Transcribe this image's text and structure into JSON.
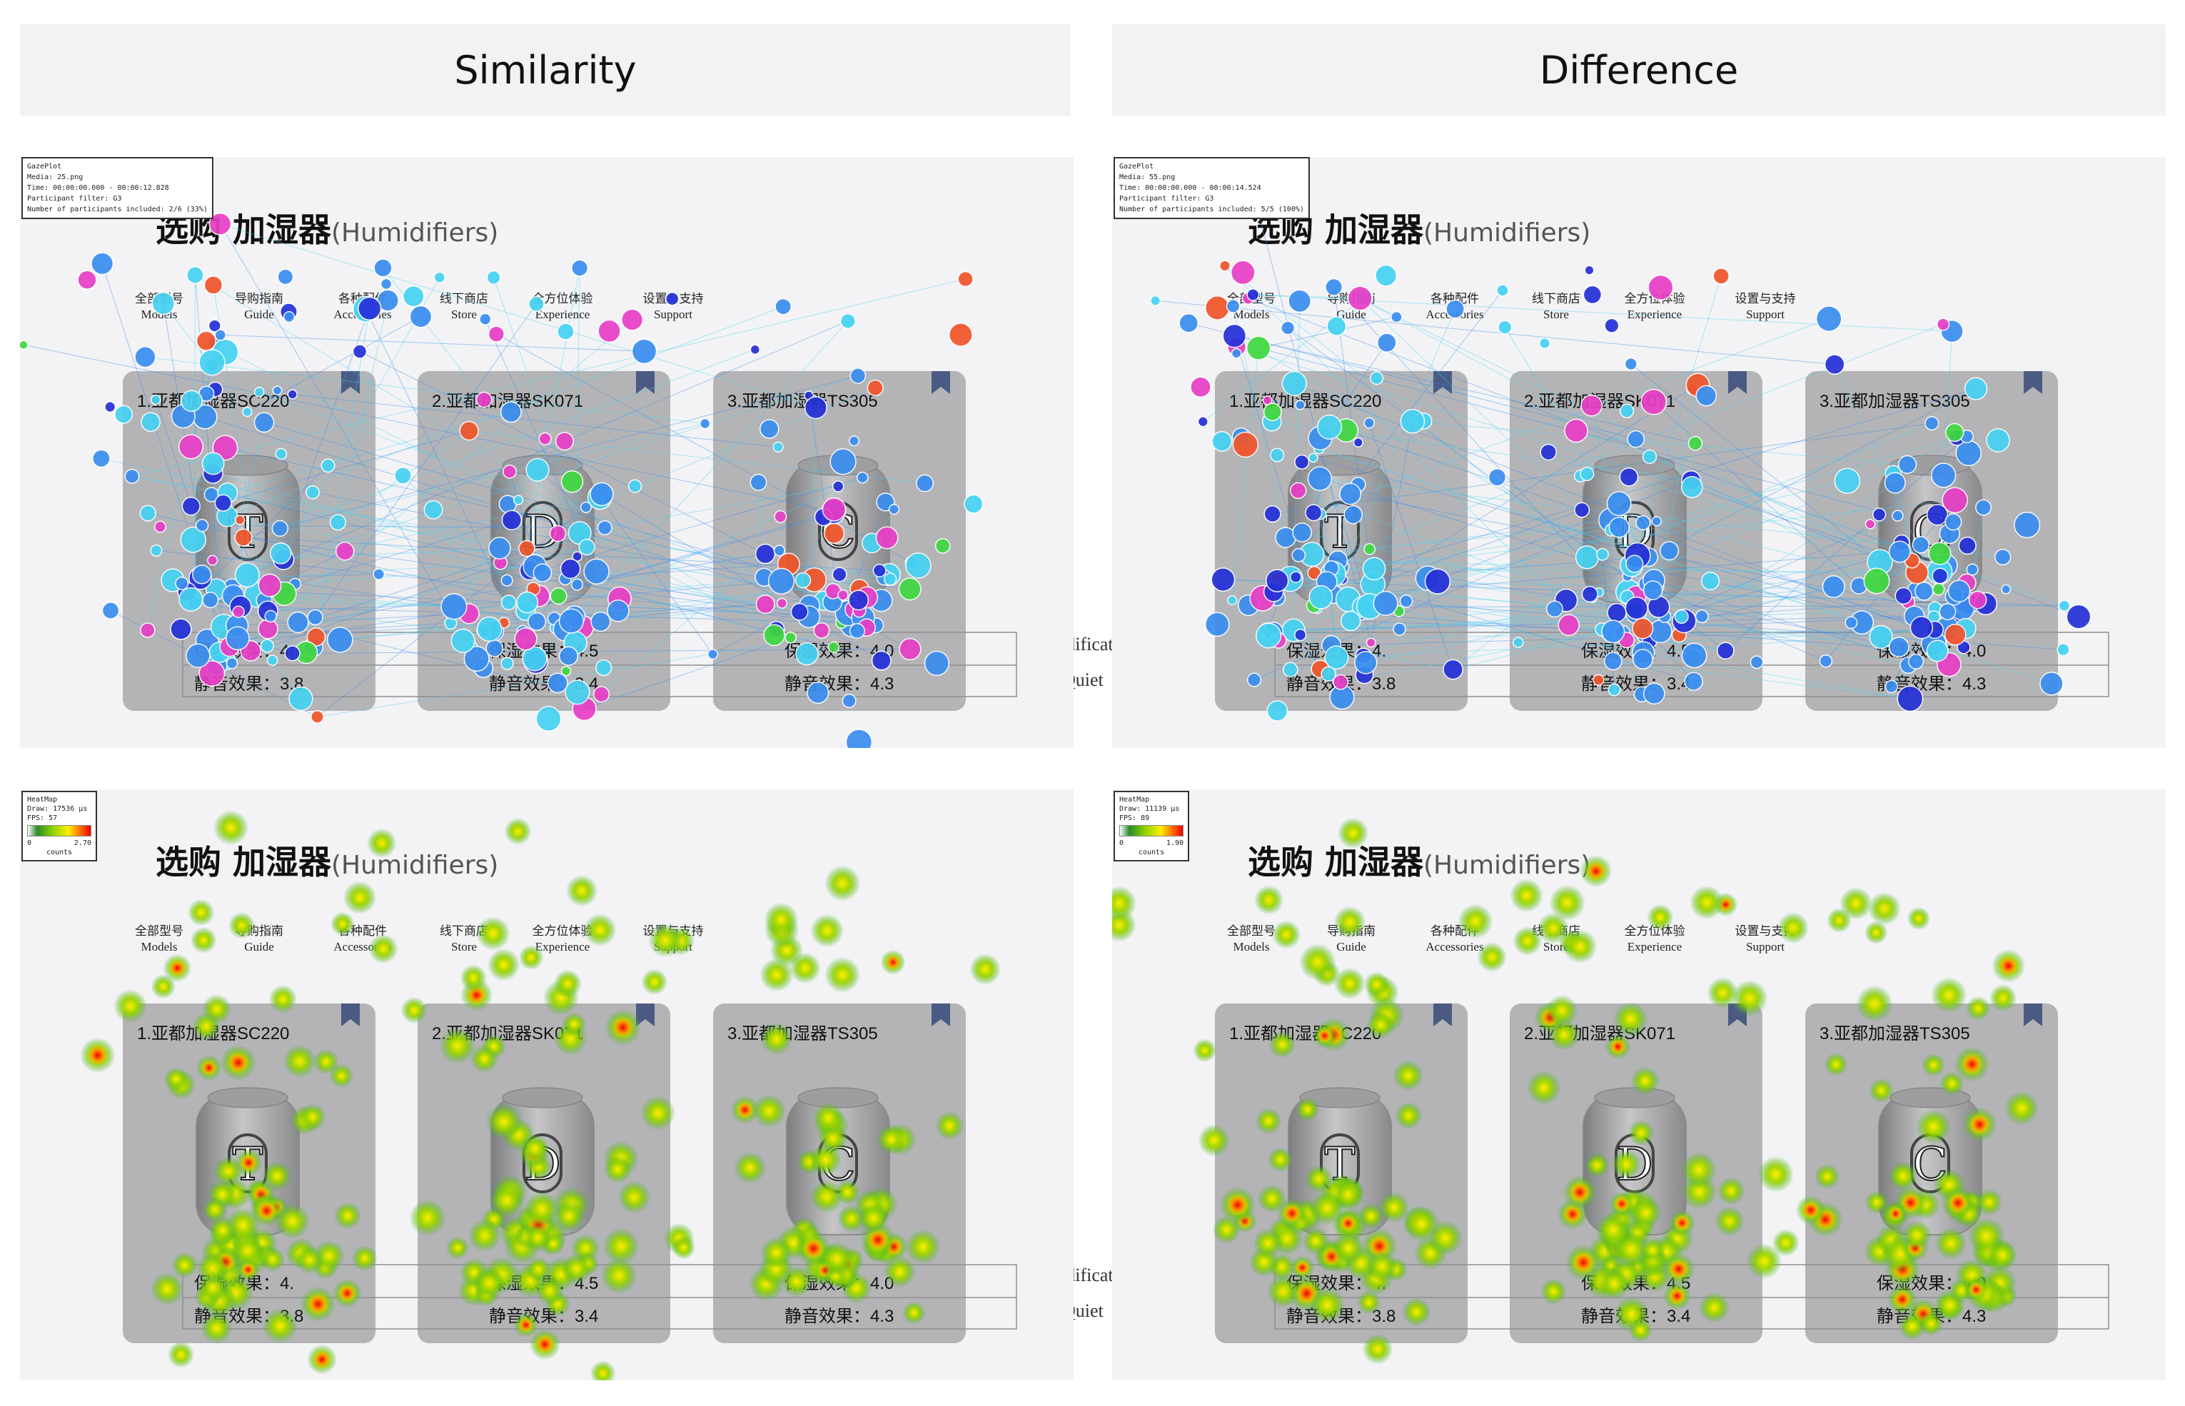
{
  "headers": {
    "left": "Similarity",
    "right": "Difference"
  },
  "page": {
    "title_cn": "选购 加湿器",
    "title_en": "(Humidifiers)",
    "nav": [
      {
        "cn": "全部型号",
        "en": "Models"
      },
      {
        "cn": "导购指南",
        "en": "Guide"
      },
      {
        "cn": "各种配件",
        "en": "Accessories"
      },
      {
        "cn": "线下商店",
        "en": "Store"
      },
      {
        "cn": "全方位体验",
        "en": "Experience"
      },
      {
        "cn": "设置与支持",
        "en": "Support"
      }
    ],
    "cards": [
      {
        "title": "1.亚都加湿器SC220",
        "letter": "T",
        "spec1": "保湿效果：4.",
        "spec2": "静音效果：3.8"
      },
      {
        "title": "2.亚都加湿器SK071",
        "letter": "D",
        "spec1": "保湿效果：4.5",
        "spec2": "静音效果：3.4"
      },
      {
        "title": "3.亚都加湿器TS305",
        "letter": "C",
        "spec1": "保湿效果：4.0",
        "spec2": "静音效果：4.3"
      }
    ]
  },
  "between_labels": {
    "humidification": "Humidification",
    "quiet": "Quiet"
  },
  "gazeplot_left": {
    "lines": [
      "GazePlot",
      "Media: 25.png",
      "Time: 00:00:00.000 - 00:00:12.828",
      "Participant filter: G3",
      "Number of participants included: 2/6 (33%)"
    ]
  },
  "gazeplot_right": {
    "lines": [
      "GazePlot",
      "Media: 55.png",
      "Time: 00:00:00.000 - 00:00:14.524",
      "Participant filter: G3",
      "Number of participants included: 5/5 (100%)"
    ]
  },
  "heatmap_left": {
    "lines": [
      "HeatMap",
      "Draw: 17536 μs",
      "FPS: 57"
    ],
    "min": "0",
    "max": "2.70",
    "unit": "counts"
  },
  "heatmap_right": {
    "lines": [
      "HeatMap",
      "Draw: 11139 μs",
      "FPS: 89"
    ],
    "min": "0",
    "max": "1.90",
    "unit": "counts"
  },
  "colors": {
    "card": "#b4b4b6",
    "panel": "#f3f3f5",
    "bookmark": "#4a5a82",
    "gaze": [
      "#3a8ef0",
      "#45d2f2",
      "#2430d8",
      "#e83ec6",
      "#f0552a",
      "#40d840"
    ]
  }
}
